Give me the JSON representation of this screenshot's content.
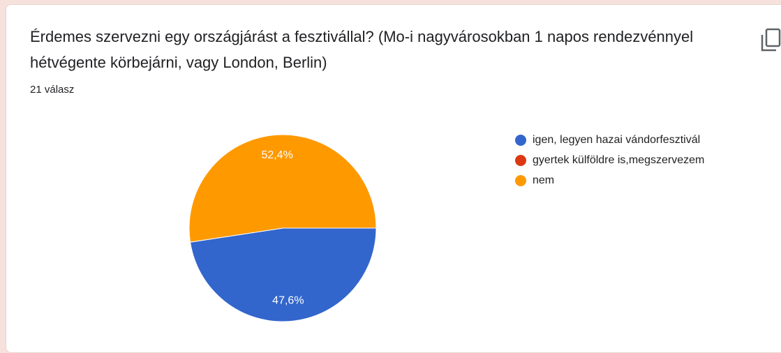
{
  "chart_data": {
    "type": "pie",
    "title": "Érdemes szervezni egy országjárást a fesztivállal? (Mo-i nagyvárosokban 1 napos rendezvénnyel hétvégente körbejárni, vagy London, Berlin)",
    "subtitle": "21 válasz",
    "categories": [
      "igen, legyen hazai vándorfesztivál",
      "gyertek külföldre is,megszervezem",
      "nem"
    ],
    "values": [
      47.6,
      0,
      52.4
    ],
    "value_labels": [
      "47,6%",
      null,
      "52,4%"
    ],
    "colors": [
      "#3366cc",
      "#dc3912",
      "#ff9900"
    ],
    "legend": "right"
  }
}
